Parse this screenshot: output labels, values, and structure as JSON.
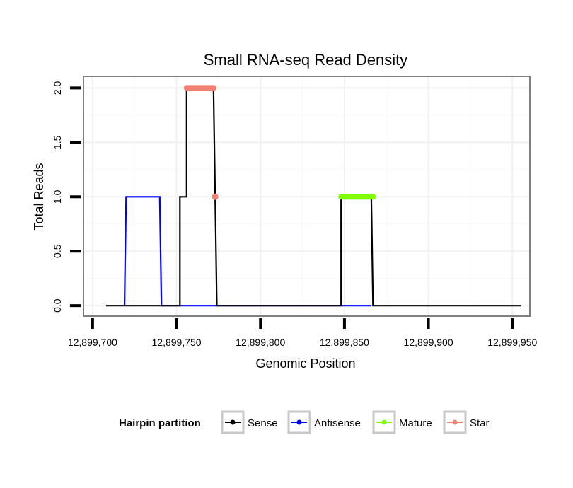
{
  "chart_data": {
    "type": "line",
    "title": "Small RNA-seq Read Density",
    "xlabel": "Genomic Position",
    "ylabel": "Total Reads",
    "xlim": [
      12899695,
      12899960
    ],
    "ylim": [
      -0.09,
      2.1
    ],
    "xticks": [
      12899700,
      12899750,
      12899800,
      12899850,
      12899900,
      12899950
    ],
    "xtick_labels": [
      "12,899,700",
      "12,899,750",
      "12,899,800",
      "12,899,850",
      "12,899,900",
      "12,899,950"
    ],
    "yticks": [
      0,
      0.5,
      1,
      1.5,
      2
    ],
    "ytick_labels": [
      "0.0",
      "0.5",
      "1.0",
      "1.5",
      "2.0"
    ],
    "grid": true,
    "legend": {
      "title": "Hairpin partition",
      "placement": "bottom",
      "entries": [
        {
          "name": "Sense",
          "color": "#000000"
        },
        {
          "name": "Antisense",
          "color": "#0000ff"
        },
        {
          "name": "Mature",
          "color": "#7fff00"
        },
        {
          "name": "Star",
          "color": "#f08070"
        }
      ]
    },
    "series": [
      {
        "name": "Sense",
        "color": "#000000",
        "style": "line",
        "x": [
          12899708,
          12899752,
          12899752,
          12899756,
          12899756,
          12899772,
          12899774,
          12899848,
          12899848,
          12899866,
          12899867,
          12899955
        ],
        "y": [
          0,
          0,
          1,
          1,
          2,
          2,
          0,
          0,
          1,
          1,
          0,
          0
        ]
      },
      {
        "name": "Antisense",
        "color": "#0000ff",
        "style": "line",
        "x": [
          12899719,
          12899720,
          12899740,
          12899741,
          12899775,
          12899849,
          12899866
        ],
        "y": [
          0,
          1,
          1,
          0,
          0,
          0,
          0
        ]
      },
      {
        "name": "Mature",
        "color": "#7fff00",
        "style": "thick",
        "x": [
          12899848,
          12899867
        ],
        "y": [
          1,
          1
        ]
      },
      {
        "name": "Star",
        "color": "#f08070",
        "style": "thick",
        "x": [
          12899756,
          12899772
        ],
        "y": [
          2,
          2
        ]
      },
      {
        "name": "Star",
        "color": "#f08070",
        "style": "point",
        "x": [
          12899773
        ],
        "y": [
          1
        ]
      }
    ]
  }
}
